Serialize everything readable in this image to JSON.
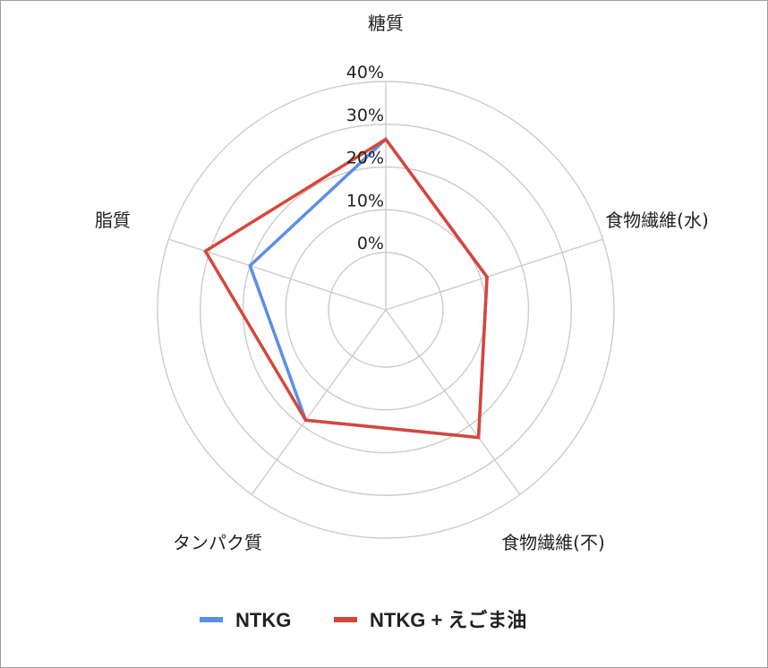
{
  "chart_data": {
    "type": "radar",
    "categories": [
      "糖質",
      "食物繊維(水)",
      "食物繊維(不)",
      "タンパク質",
      "脂質"
    ],
    "ticks": [
      "0%",
      "10%",
      "20%",
      "30%",
      "40%"
    ],
    "rlim": [
      0,
      40
    ],
    "ring_min": 0,
    "series": [
      {
        "name": "NTKG",
        "color": "#5b8ee6",
        "values": [
          26.5,
          11.5,
          23.5,
          18.5,
          20.0
        ]
      },
      {
        "name": "NTKG + えごま油",
        "color": "#d6473a",
        "values": [
          26.5,
          11.5,
          23.5,
          18.5,
          31.0
        ]
      }
    ],
    "legend_position": "bottom",
    "grid": true
  },
  "colors": {
    "grid": "#cccccc",
    "border": "#9e9e9e",
    "text": "#222222"
  }
}
